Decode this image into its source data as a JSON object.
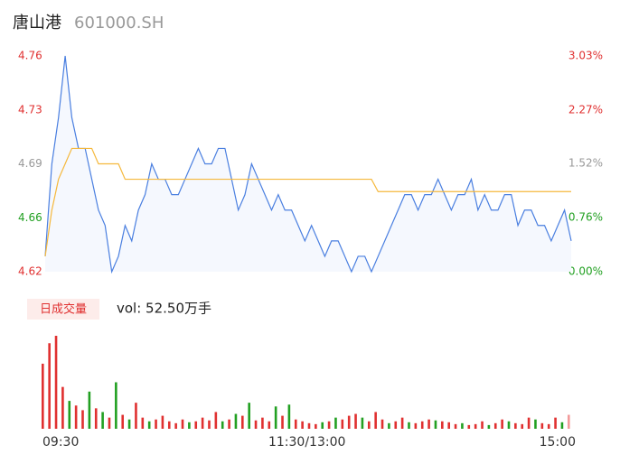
{
  "chart_data": {
    "type": "intraday",
    "title": "唐山港",
    "subtitle": "601000.SH",
    "categories": [
      "09:30",
      null,
      null,
      null,
      null,
      null,
      null,
      null,
      null,
      null,
      null,
      null,
      null,
      null,
      null,
      null,
      null,
      null,
      null,
      null,
      null,
      null,
      null,
      null,
      null,
      null,
      null,
      null,
      null,
      null,
      null,
      null,
      null,
      null,
      null,
      null,
      null,
      null,
      null,
      null,
      "11:30/13:00",
      null,
      null,
      null,
      null,
      null,
      null,
      null,
      null,
      null,
      null,
      null,
      null,
      null,
      null,
      null,
      null,
      null,
      null,
      null,
      null,
      null,
      null,
      null,
      null,
      null,
      null,
      null,
      null,
      null,
      null,
      null,
      null,
      null,
      null,
      null,
      null,
      null,
      null,
      "15:00"
    ],
    "series": [
      {
        "name": "price",
        "color": "#4a7fe0",
        "values": [
          4.63,
          4.69,
          4.72,
          4.76,
          4.72,
          4.7,
          4.7,
          4.68,
          4.66,
          4.65,
          4.62,
          4.63,
          4.65,
          4.64,
          4.66,
          4.67,
          4.69,
          4.68,
          4.68,
          4.67,
          4.67,
          4.68,
          4.69,
          4.7,
          4.69,
          4.69,
          4.7,
          4.7,
          4.68,
          4.66,
          4.67,
          4.69,
          4.68,
          4.67,
          4.66,
          4.67,
          4.66,
          4.66,
          4.65,
          4.64,
          4.65,
          4.64,
          4.63,
          4.64,
          4.64,
          4.63,
          4.62,
          4.63,
          4.63,
          4.62,
          4.63,
          4.64,
          4.65,
          4.66,
          4.67,
          4.67,
          4.66,
          4.67,
          4.67,
          4.68,
          4.67,
          4.66,
          4.67,
          4.67,
          4.68,
          4.66,
          4.67,
          4.66,
          4.66,
          4.67,
          4.67,
          4.65,
          4.66,
          4.66,
          4.65,
          4.65,
          4.64,
          4.65,
          4.66,
          4.64
        ]
      },
      {
        "name": "average",
        "color": "#f5b83c",
        "values": [
          4.63,
          4.66,
          4.68,
          4.69,
          4.7,
          4.7,
          4.7,
          4.7,
          4.69,
          4.69,
          4.69,
          4.69,
          4.68,
          4.68,
          4.68,
          4.68,
          4.68,
          4.68,
          4.68,
          4.68,
          4.68,
          4.68,
          4.68,
          4.68,
          4.68,
          4.68,
          4.68,
          4.68,
          4.68,
          4.68,
          4.68,
          4.68,
          4.68,
          4.68,
          4.68,
          4.68,
          4.68,
          4.68,
          4.68,
          4.68,
          4.68,
          4.68,
          4.68,
          4.68,
          4.68,
          4.68,
          4.68,
          4.68,
          4.68,
          4.68,
          4.672,
          4.672,
          4.672,
          4.672,
          4.672,
          4.672,
          4.672,
          4.672,
          4.672,
          4.672,
          4.672,
          4.672,
          4.672,
          4.672,
          4.672,
          4.672,
          4.672,
          4.672,
          4.672,
          4.672,
          4.672,
          4.672,
          4.672,
          4.672,
          4.672,
          4.672,
          4.672,
          4.672,
          4.672,
          4.672
        ]
      }
    ],
    "ylim": [
      4.62,
      4.76
    ],
    "yticks": [
      4.62,
      {
        "value": 4.655,
        "label": "4.66"
      },
      4.69,
      {
        "value": 4.725,
        "label": "4.73"
      },
      4.76
    ],
    "ytick_colors": [
      "#e03030",
      "#22a022",
      "#999999",
      "#e03030",
      "#e03030"
    ],
    "y2lim": [
      0,
      3.03
    ],
    "y2ticks": [
      {
        "value": 0,
        "label": "0.00%"
      },
      {
        "value": 0.76,
        "label": "0.76%"
      },
      {
        "value": 1.52,
        "label": "1.52%"
      },
      {
        "value": 2.27,
        "label": "2.27%"
      },
      {
        "value": 3.03,
        "label": "3.03%"
      }
    ],
    "y2tick_colors": [
      "#22a022",
      "#22a022",
      "#999999",
      "#e03030",
      "#e03030"
    ],
    "volume": {
      "legend": "日成交量",
      "label": "vol: 52.50万手",
      "ylim": [
        0,
        100
      ],
      "values": [
        70,
        92,
        100,
        45,
        30,
        25,
        20,
        40,
        22,
        18,
        12,
        50,
        15,
        10,
        28,
        12,
        8,
        10,
        14,
        8,
        6,
        10,
        7,
        8,
        12,
        9,
        18,
        8,
        10,
        16,
        14,
        28,
        9,
        12,
        8,
        24,
        14,
        26,
        10,
        8,
        6,
        5,
        7,
        8,
        12,
        10,
        14,
        16,
        12,
        8,
        18,
        10,
        6,
        8,
        12,
        7,
        6,
        8,
        10,
        9,
        8,
        7,
        5,
        6,
        4,
        5,
        8,
        4,
        6,
        10,
        8,
        6,
        5,
        12,
        10,
        6,
        5,
        12,
        7,
        15
      ],
      "colors": [
        "#e03030",
        "#e03030",
        "#e03030",
        "#e03030",
        "#22a022",
        "#e03030",
        "#e03030",
        "#22a022",
        "#e03030",
        "#22a022",
        "#e03030",
        "#22a022",
        "#e03030",
        "#22a022",
        "#e03030",
        "#e03030",
        "#22a022",
        "#e03030",
        "#e03030",
        "#e03030",
        "#e03030",
        "#e03030",
        "#22a022",
        "#e03030",
        "#e03030",
        "#e03030",
        "#e03030",
        "#22a022",
        "#e03030",
        "#22a022",
        "#e03030",
        "#22a022",
        "#e03030",
        "#e03030",
        "#e03030",
        "#22a022",
        "#e03030",
        "#22a022",
        "#e03030",
        "#e03030",
        "#e03030",
        "#e03030",
        "#22a022",
        "#e03030",
        "#22a022",
        "#e03030",
        "#e03030",
        "#e03030",
        "#22a022",
        "#e03030",
        "#e03030",
        "#e03030",
        "#22a022",
        "#e03030",
        "#e03030",
        "#22a022",
        "#e03030",
        "#e03030",
        "#e03030",
        "#22a022",
        "#e03030",
        "#e03030",
        "#e03030",
        "#22a022",
        "#e03030",
        "#e03030",
        "#e03030",
        "#22a022",
        "#e03030",
        "#e03030",
        "#22a022",
        "#e03030",
        "#e03030",
        "#e03030",
        "#22a022",
        "#e03030",
        "#e03030",
        "#e03030",
        "#22a022",
        "#f29a9a"
      ]
    }
  }
}
